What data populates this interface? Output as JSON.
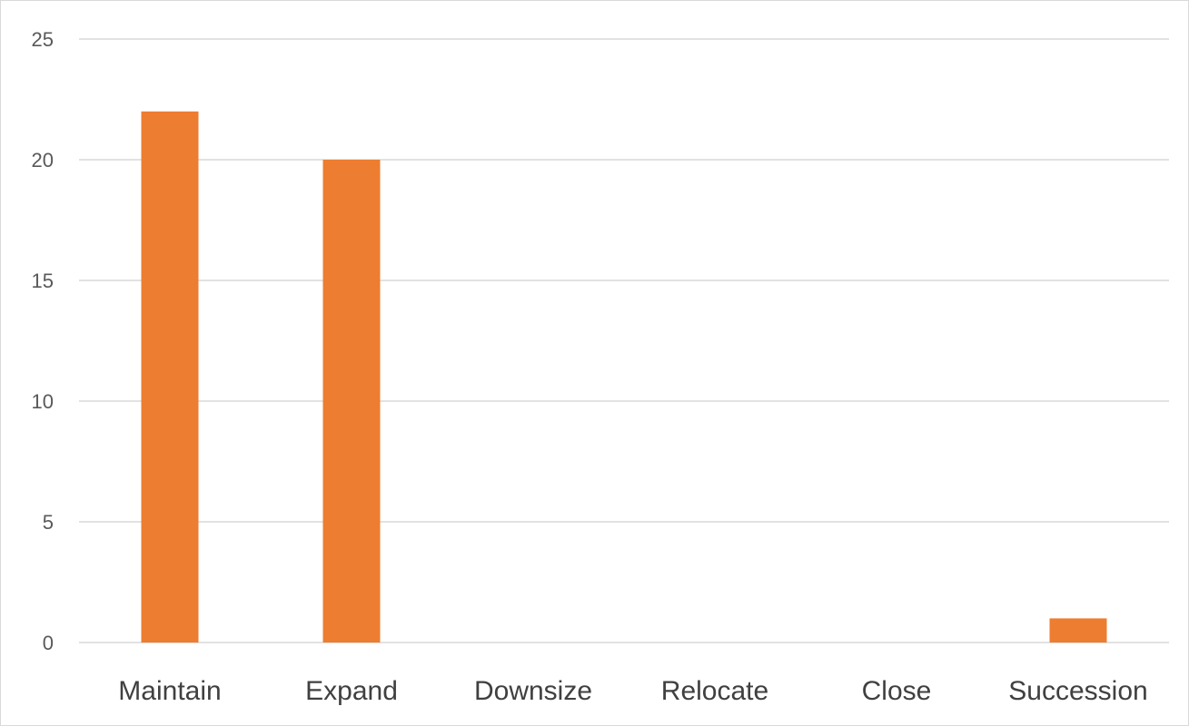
{
  "chart_data": {
    "type": "bar",
    "title": "",
    "xlabel": "",
    "ylabel": "",
    "categories": [
      "Maintain",
      "Expand",
      "Downsize",
      "Relocate",
      "Close",
      "Succession"
    ],
    "values": [
      22,
      20,
      0,
      0,
      0,
      1
    ],
    "ylim": [
      0,
      25
    ],
    "yticks": [
      0,
      5,
      10,
      15,
      20,
      25
    ],
    "grid": true,
    "legend": "none",
    "colors": {
      "bar": "#ED7D31",
      "grid": "#D9D9D9",
      "tick_text": "#595959",
      "category_text": "#404040"
    }
  }
}
